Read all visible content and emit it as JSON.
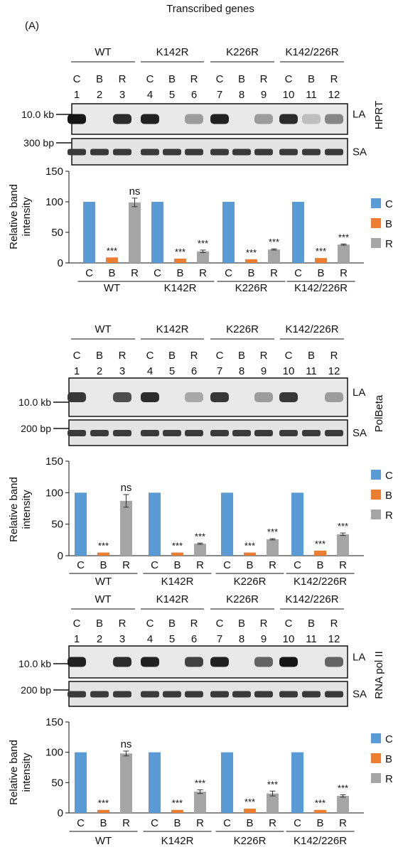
{
  "figure": {
    "title": "Transcribed genes",
    "panel_label": "(A)",
    "strain_labels": [
      "WT",
      "K142R",
      "K226R",
      "K142/226R"
    ],
    "lane_letters": [
      "C",
      "B",
      "R",
      "C",
      "B",
      "R",
      "C",
      "B",
      "R",
      "C",
      "B",
      "R"
    ],
    "lane_numbers": [
      "1",
      "2",
      "3",
      "4",
      "5",
      "6",
      "7",
      "8",
      "9",
      "10",
      "11",
      "12"
    ],
    "band_labels": {
      "long": "LA",
      "short": "SA"
    },
    "legend": [
      "C",
      "B",
      "R"
    ],
    "y_axis_label_line1": "Relative band",
    "y_axis_label_line2": "intensity",
    "colors": {
      "C": "#5b9bd5",
      "B": "#ed7d31",
      "R": "#a5a5a5"
    }
  },
  "blocks": [
    {
      "gene": "HPRT",
      "marker_long": "10.0 kb",
      "marker_short": "300 bp",
      "chart_data": {
        "type": "bar",
        "categories": [
          "WT",
          "K142R",
          "K226R",
          "K142/226R"
        ],
        "series": [
          {
            "name": "C",
            "values": [
              100,
              100,
              100,
              100
            ]
          },
          {
            "name": "B",
            "values": [
              9,
              7,
              6,
              8
            ]
          },
          {
            "name": "R",
            "values": [
              99,
              19,
              22,
              30
            ]
          }
        ],
        "errors": {
          "R": [
            7,
            2,
            1,
            1
          ]
        },
        "significance": {
          "B": [
            "***",
            "***",
            "***",
            "***"
          ],
          "R": [
            "ns",
            "***",
            "***",
            "***"
          ]
        },
        "yticks": [
          "0",
          "50",
          "100",
          "150"
        ],
        "ylim": [
          0,
          150
        ],
        "ylabel": "Relative band intensity",
        "legend_position": "right"
      }
    },
    {
      "gene": "PolBeta",
      "marker_long": "10.0 kb",
      "marker_short": "200 bp",
      "chart_data": {
        "type": "bar",
        "categories": [
          "WT",
          "K142R",
          "K226R",
          "K142/226R"
        ],
        "series": [
          {
            "name": "C",
            "values": [
              100,
              100,
              100,
              100
            ]
          },
          {
            "name": "B",
            "values": [
              5,
              5,
              5,
              8
            ]
          },
          {
            "name": "R",
            "values": [
              87,
              19,
              26,
              34
            ]
          }
        ],
        "errors": {
          "R": [
            10,
            1,
            1,
            2
          ]
        },
        "significance": {
          "B": [
            "***",
            "***",
            "***",
            "***"
          ],
          "R": [
            "ns",
            "***",
            "***",
            "***"
          ]
        },
        "yticks": [
          "0",
          "50",
          "100",
          "150"
        ],
        "ylim": [
          0,
          150
        ],
        "ylabel": "Relative band intensity",
        "legend_position": "right"
      }
    },
    {
      "gene": "RNA pol II",
      "marker_long": "10.0 kb",
      "marker_short": "200 bp",
      "chart_data": {
        "type": "bar",
        "categories": [
          "WT",
          "K142R",
          "K226R",
          "K142/226R"
        ],
        "series": [
          {
            "name": "C",
            "values": [
              100,
              100,
              100,
              100
            ]
          },
          {
            "name": "B",
            "values": [
              5,
              5,
              7,
              5
            ]
          },
          {
            "name": "R",
            "values": [
              98,
              35,
              32,
              28
            ]
          }
        ],
        "errors": {
          "R": [
            4,
            3,
            4,
            2
          ]
        },
        "significance": {
          "B": [
            "***",
            "***",
            "***",
            "***"
          ],
          "R": [
            "ns",
            "***",
            "***",
            "***"
          ]
        },
        "yticks": [
          "0",
          "50",
          "100",
          "150"
        ],
        "ylim": [
          0,
          150
        ],
        "ylabel": "Relative band intensity",
        "legend_position": "right"
      }
    }
  ]
}
